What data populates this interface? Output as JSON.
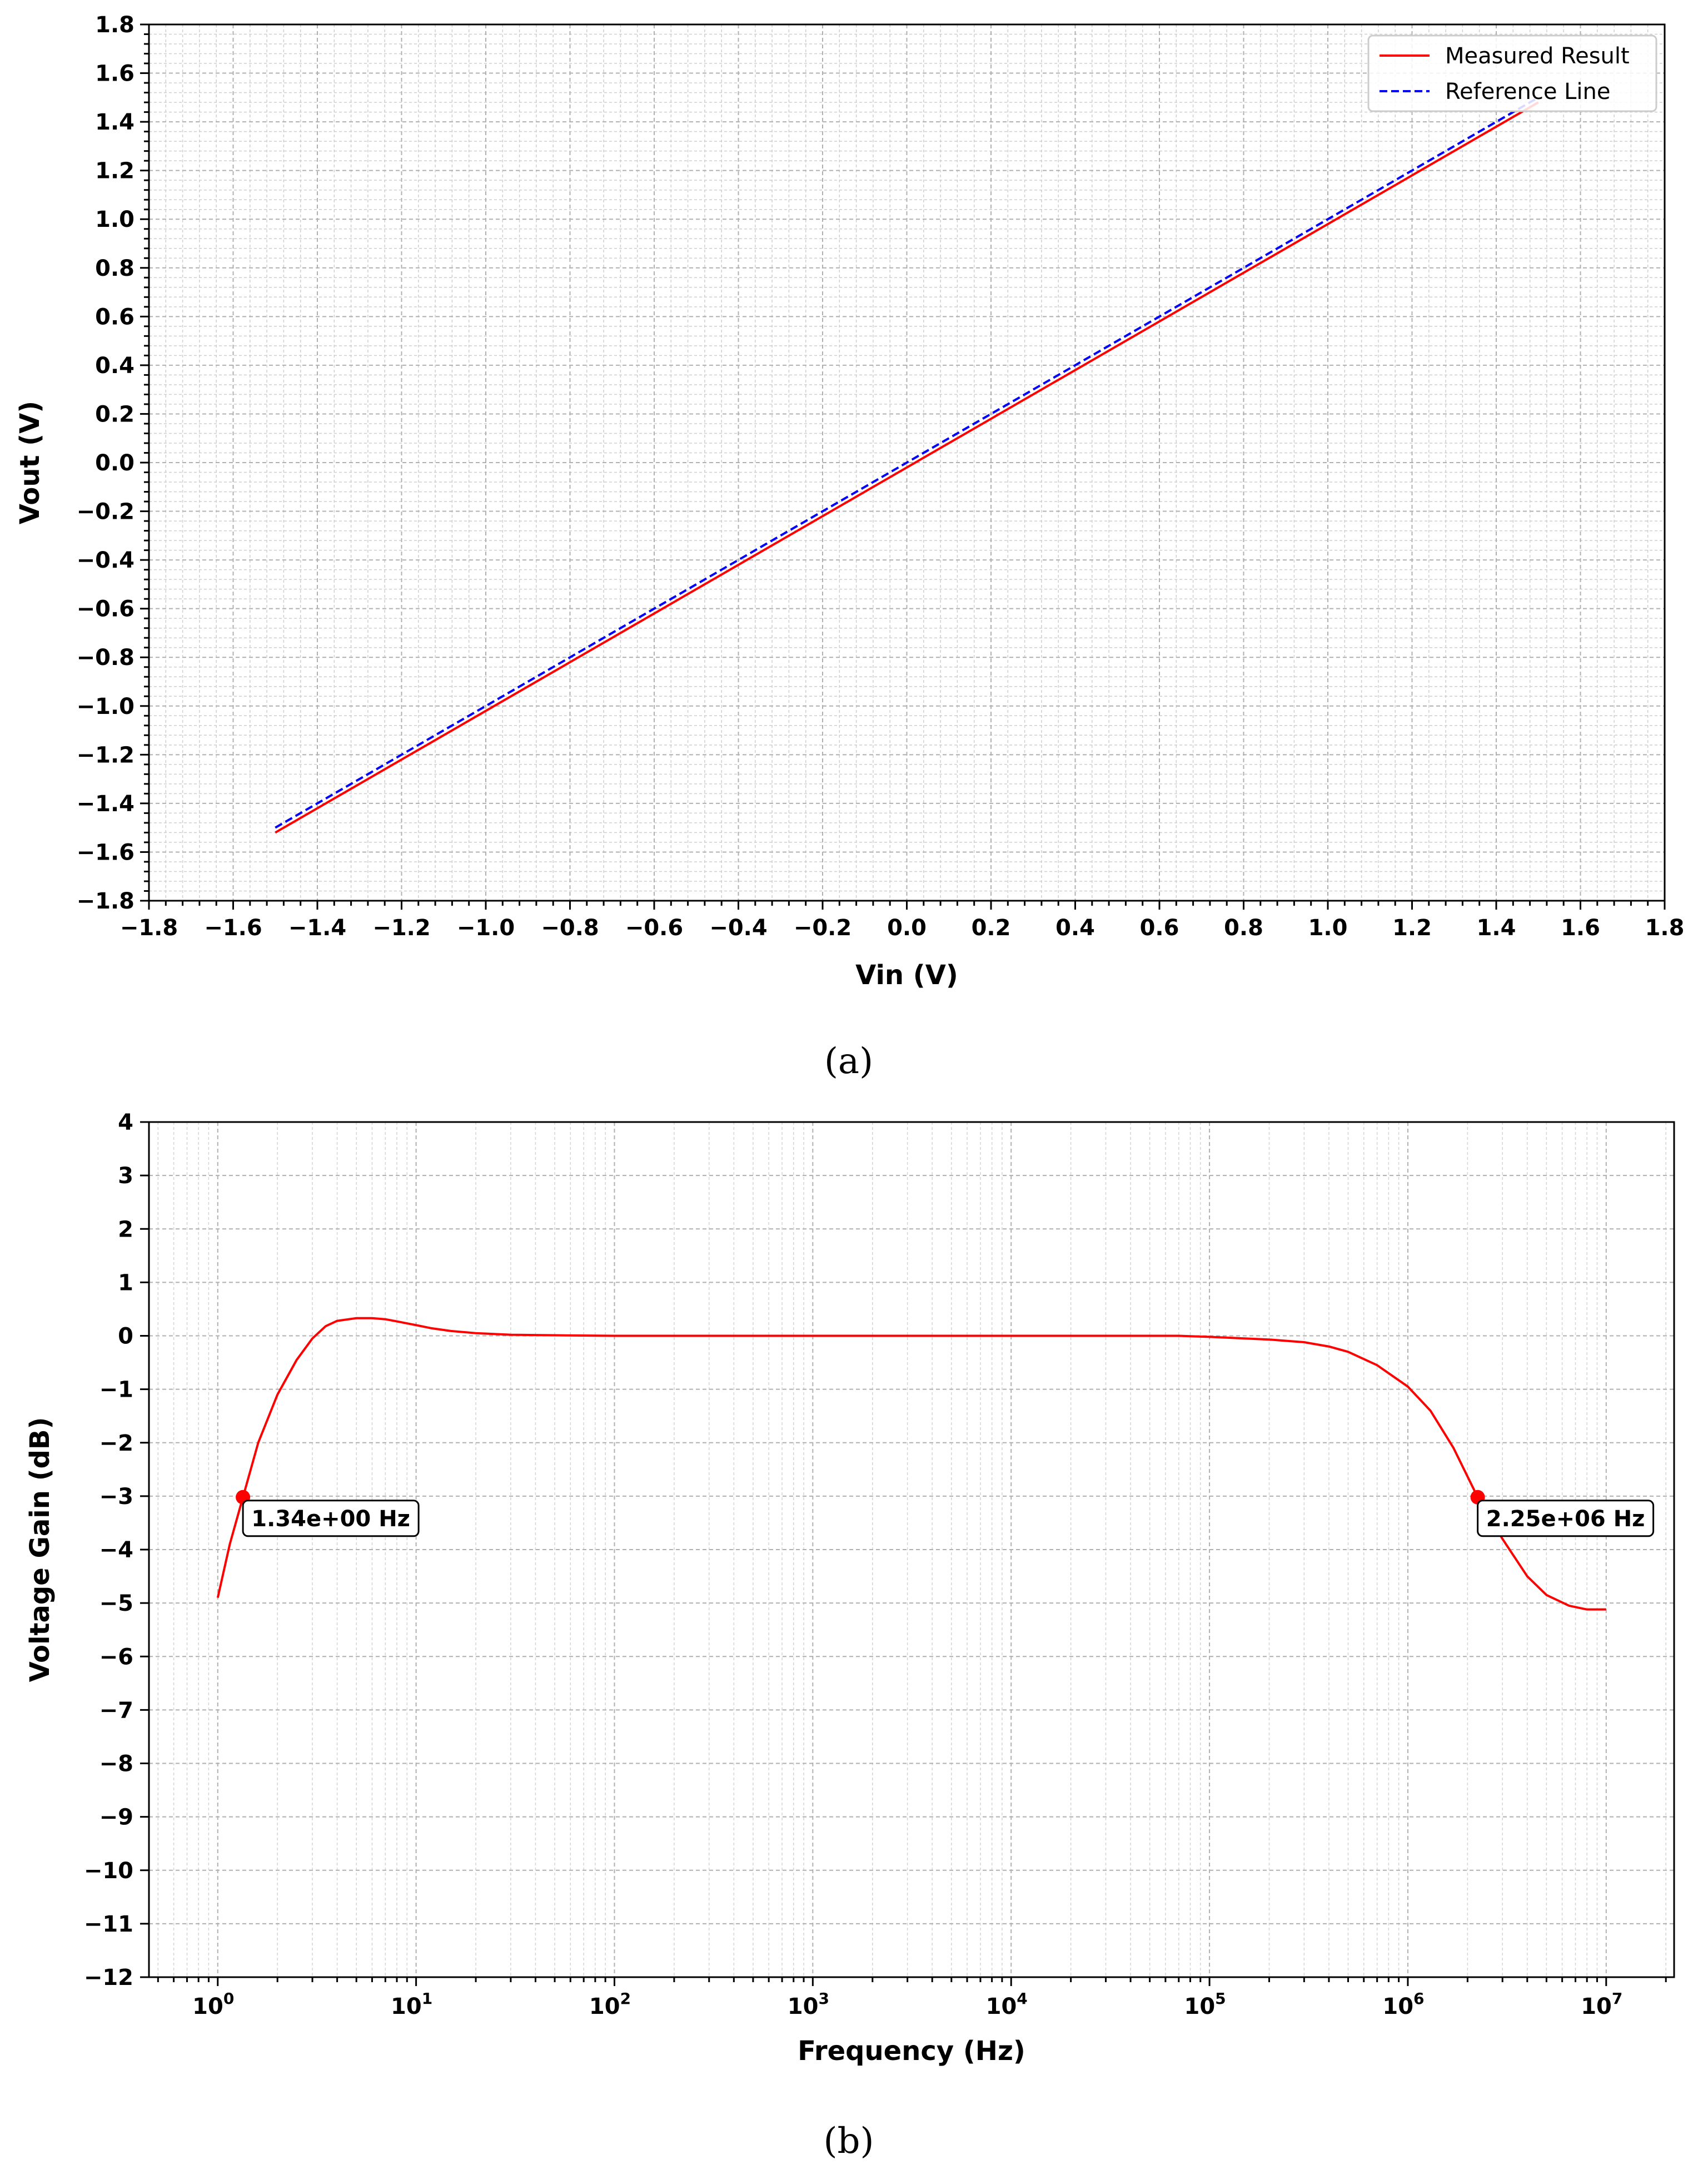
{
  "chart_data": [
    {
      "type": "line",
      "caption": "(a)",
      "xlabel": "Vin (V)",
      "ylabel": "Vout (V)",
      "xlim": [
        -1.8,
        1.8
      ],
      "ylim": [
        -1.8,
        1.8
      ],
      "xticks": [
        "−1.8",
        "−1.6",
        "−1.4",
        "−1.2",
        "−1.0",
        "−0.8",
        "−0.6",
        "−0.4",
        "−0.2",
        "0.0",
        "0.2",
        "0.4",
        "0.6",
        "0.8",
        "1.0",
        "1.2",
        "1.4",
        "1.6",
        "1.8"
      ],
      "yticks": [
        "−1.8",
        "−1.6",
        "−1.4",
        "−1.2",
        "−1.0",
        "−0.8",
        "−0.6",
        "−0.4",
        "−0.2",
        "0.0",
        "0.2",
        "0.4",
        "0.6",
        "0.8",
        "1.0",
        "1.2",
        "1.4",
        "1.6",
        "1.8"
      ],
      "grid": true,
      "legend_position": "top-right",
      "series": [
        {
          "name": "Measured Result",
          "color": "#ff0000",
          "style": "solid",
          "x": [
            -1.5,
            1.5
          ],
          "y": [
            -1.52,
            1.48
          ]
        },
        {
          "name": "Reference Line",
          "color": "#0000ff",
          "style": "dashed",
          "x": [
            -1.5,
            1.5
          ],
          "y": [
            -1.5,
            1.5
          ]
        }
      ]
    },
    {
      "type": "line",
      "caption": "(b)",
      "xlabel": "Frequency (Hz)",
      "ylabel": "Voltage Gain (dB)",
      "xscale": "log",
      "xlim": [
        0.45,
        22000000
      ],
      "ylim": [
        -12,
        4
      ],
      "xticks": [
        {
          "base": "10",
          "exp": "0"
        },
        {
          "base": "10",
          "exp": "1"
        },
        {
          "base": "10",
          "exp": "2"
        },
        {
          "base": "10",
          "exp": "3"
        },
        {
          "base": "10",
          "exp": "4"
        },
        {
          "base": "10",
          "exp": "5"
        },
        {
          "base": "10",
          "exp": "6"
        },
        {
          "base": "10",
          "exp": "7"
        }
      ],
      "yticks": [
        "−12",
        "−11",
        "−10",
        "−9",
        "−8",
        "−7",
        "−6",
        "−5",
        "−4",
        "−3",
        "−2",
        "−1",
        "0",
        "1",
        "2",
        "3",
        "4"
      ],
      "grid": true,
      "series": [
        {
          "color": "#ff0000",
          "style": "solid",
          "x": [
            1.0,
            1.15,
            1.34,
            1.6,
            2.0,
            2.5,
            3.0,
            3.5,
            4.0,
            5.0,
            6.0,
            7.0,
            8.0,
            10,
            12,
            15,
            20,
            30,
            50,
            100,
            1000,
            10000,
            70000,
            100000,
            200000,
            300000,
            400000,
            500000,
            700000,
            1000000,
            1300000,
            1700000,
            2250000,
            3000000,
            4000000,
            5000000,
            6500000,
            8000000,
            10000000
          ],
          "y": [
            -4.9,
            -3.9,
            -3.02,
            -2.0,
            -1.1,
            -0.45,
            -0.05,
            0.18,
            0.28,
            0.33,
            0.33,
            0.31,
            0.27,
            0.2,
            0.14,
            0.09,
            0.05,
            0.02,
            0.01,
            0.0,
            0.0,
            0.0,
            0.0,
            -0.02,
            -0.07,
            -0.12,
            -0.2,
            -0.3,
            -0.55,
            -0.95,
            -1.4,
            -2.1,
            -3.02,
            -3.8,
            -4.5,
            -4.85,
            -5.05,
            -5.12,
            -5.12
          ]
        }
      ],
      "annotations": [
        {
          "x": 1.34,
          "y": -3.02,
          "label": "1.34e+00 Hz"
        },
        {
          "x": 2250000,
          "y": -3.02,
          "label": "2.25e+06 Hz"
        }
      ]
    }
  ]
}
